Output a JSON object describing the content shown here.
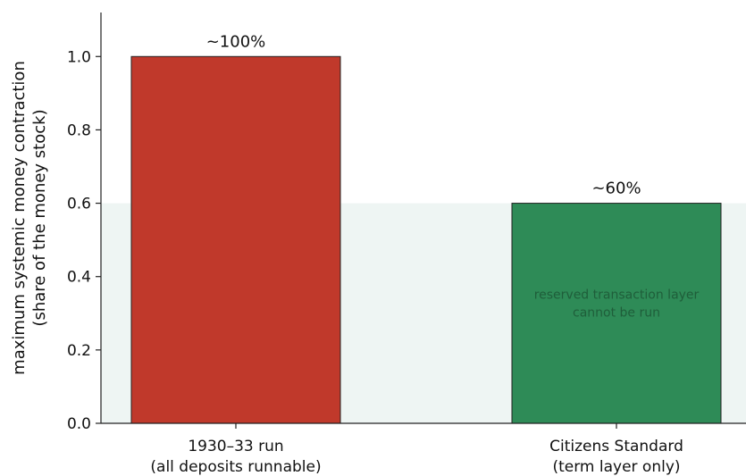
{
  "chart_data": {
    "type": "bar",
    "categories": [
      [
        "1930–33 run",
        "(all deposits runnable)"
      ],
      [
        "Citizens Standard",
        "(term layer only)"
      ]
    ],
    "values": [
      1.0,
      0.6
    ],
    "data_labels": [
      "~100%",
      "~60%"
    ],
    "bar_colors": [
      "#c0392b",
      "#2e8b57"
    ],
    "ylabel": [
      "maximum systemic money contraction",
      "(share of the money stock)"
    ],
    "xlabel": "",
    "ylim": [
      0,
      1.12
    ],
    "yticks": [
      0.0,
      0.2,
      0.4,
      0.6,
      0.8,
      1.0
    ],
    "ytick_labels": [
      "0.0",
      "0.2",
      "0.4",
      "0.6",
      "0.8",
      "1.0"
    ],
    "shaded_band": {
      "from": 0,
      "to": 0.6,
      "color": "#eef5f3"
    },
    "annotation": {
      "category_index": 1,
      "y": 0.33,
      "lines": [
        "reserved transaction layer",
        "cannot be run"
      ],
      "color": "#1f5e3a"
    },
    "grid": false
  }
}
